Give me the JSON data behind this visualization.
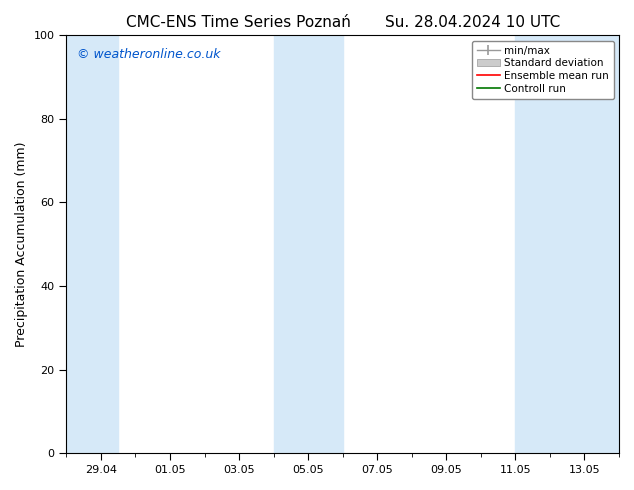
{
  "title_left": "CMC-ENS Time Series Poznań",
  "title_right": "Su. 28.04.2024 10 UTC",
  "ylabel": "Precipitation Accumulation (mm)",
  "ylim": [
    0,
    100
  ],
  "yticks": [
    0,
    20,
    40,
    60,
    80,
    100
  ],
  "xtick_labels": [
    "29.04",
    "01.05",
    "03.05",
    "05.05",
    "07.05",
    "09.05",
    "11.05",
    "13.05"
  ],
  "watermark": "© weatheronline.co.uk",
  "watermark_color": "#0055cc",
  "bg_color": "#ffffff",
  "plot_bg_color": "#ffffff",
  "shaded_color": "#d6e9f8",
  "legend_items": [
    {
      "label": "min/max",
      "color": "#aaaaaa",
      "type": "errorbar"
    },
    {
      "label": "Standard deviation",
      "color": "#cccccc",
      "type": "fill"
    },
    {
      "label": "Ensemble mean run",
      "color": "#ff0000",
      "type": "line"
    },
    {
      "label": "Controll run",
      "color": "#007700",
      "type": "line"
    }
  ],
  "tick_fontsize": 8,
  "ylabel_fontsize": 9,
  "title_fontsize": 11,
  "watermark_fontsize": 9
}
